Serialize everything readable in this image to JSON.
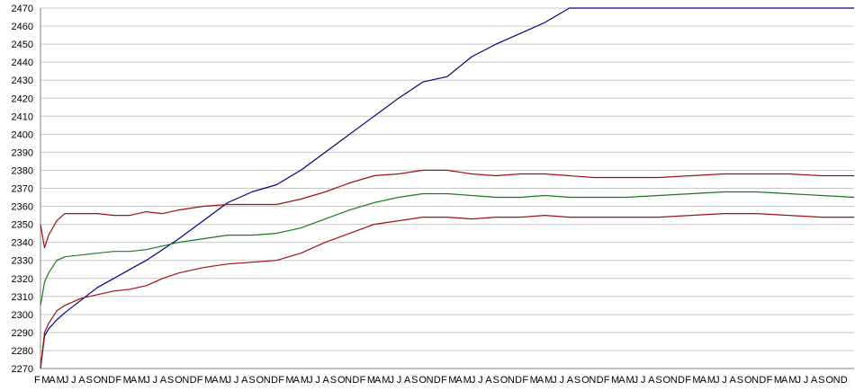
{
  "chart_data": {
    "type": "line",
    "grid": true,
    "legend": "none",
    "title": "",
    "xlabel": "",
    "ylabel": "",
    "ylim": [
      2270,
      2470
    ],
    "yticks": [
      2270,
      2280,
      2290,
      2300,
      2310,
      2320,
      2330,
      2340,
      2350,
      2360,
      2370,
      2380,
      2390,
      2400,
      2410,
      2420,
      2430,
      2440,
      2450,
      2460,
      2470
    ],
    "x_tick_pattern": [
      "F",
      "M",
      "A",
      "M",
      "J",
      "J",
      "A",
      "S",
      "O",
      "N",
      "D"
    ],
    "x_tick_cycles": 10,
    "colors": {
      "blue": "#00008b",
      "green": "#1a7a1a",
      "red": "#a01010",
      "grid": "#c8c8c8",
      "axis": "#808080",
      "tick_text": "#000000"
    },
    "x": [
      0,
      0.005,
      0.01,
      0.02,
      0.03,
      0.05,
      0.07,
      0.09,
      0.11,
      0.13,
      0.15,
      0.17,
      0.2,
      0.23,
      0.26,
      0.29,
      0.32,
      0.35,
      0.38,
      0.41,
      0.44,
      0.47,
      0.5,
      0.53,
      0.56,
      0.59,
      0.62,
      0.65,
      0.68,
      0.72,
      0.76,
      0.8,
      0.84,
      0.88,
      0.92,
      0.96,
      1.0
    ],
    "series": [
      {
        "color": "#00008b",
        "values": [
          2270,
          2288,
          2292,
          2297,
          2301,
          2308,
          2315,
          2320,
          2325,
          2330,
          2336,
          2342,
          2352,
          2362,
          2368,
          2372,
          2380,
          2390,
          2400,
          2410,
          2420,
          2429,
          2432,
          2443,
          2450,
          2456,
          2462,
          2470,
          2470,
          2470,
          2470,
          2470,
          2470,
          2470,
          2470,
          2470,
          2470
        ]
      },
      {
        "color": "#a01010",
        "values": [
          2350,
          2337,
          2344,
          2352,
          2356,
          2356,
          2356,
          2355,
          2355,
          2357,
          2356,
          2358,
          2360,
          2361,
          2361,
          2361,
          2364,
          2368,
          2373,
          2377,
          2378,
          2380,
          2380,
          2378,
          2377,
          2378,
          2378,
          2377,
          2376,
          2376,
          2376,
          2377,
          2378,
          2378,
          2378,
          2377,
          2377
        ]
      },
      {
        "color": "#1a7a1a",
        "values": [
          2305,
          2318,
          2323,
          2330,
          2332,
          2333,
          2334,
          2335,
          2335,
          2336,
          2338,
          2340,
          2342,
          2344,
          2344,
          2345,
          2348,
          2353,
          2358,
          2362,
          2365,
          2367,
          2367,
          2366,
          2365,
          2365,
          2366,
          2365,
          2365,
          2365,
          2366,
          2367,
          2368,
          2368,
          2367,
          2366,
          2365
        ]
      },
      {
        "color": "#a01010",
        "values": [
          2270,
          2290,
          2295,
          2302,
          2305,
          2309,
          2311,
          2313,
          2314,
          2316,
          2320,
          2323,
          2326,
          2328,
          2329,
          2330,
          2334,
          2340,
          2345,
          2350,
          2352,
          2354,
          2354,
          2353,
          2354,
          2354,
          2355,
          2354,
          2354,
          2354,
          2354,
          2355,
          2356,
          2356,
          2355,
          2354,
          2354
        ]
      }
    ]
  }
}
